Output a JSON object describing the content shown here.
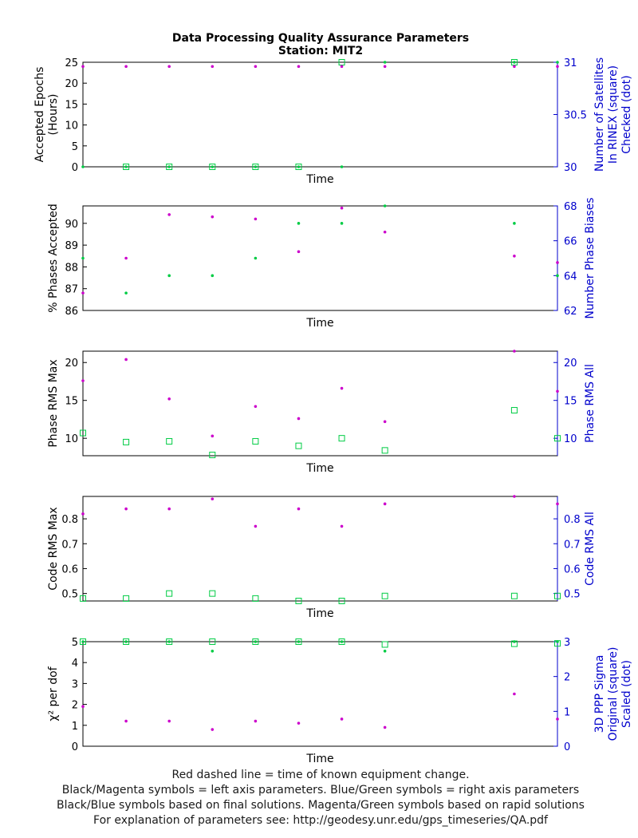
{
  "figure": {
    "title": "Data Processing Quality Assurance Parameters",
    "subtitle": "Station: MIT2",
    "footer": [
      "Red dashed line = time of known equipment change.",
      "Black/Magenta symbols = left axis parameters. Blue/Green symbols = right axis parameters",
      "Black/Blue symbols based on final solutions.  Magenta/Green symbols based on rapid solutions",
      "For explanation of parameters see: http://geodesy.unr.edu/gps_timeseries/QA.pdf"
    ],
    "colors": {
      "magenta": "#cc00cc",
      "green": "#00cc44",
      "right_axis": "#0000cc",
      "left_axis": "#000000"
    }
  },
  "chart_data": [
    {
      "type": "scatter",
      "xlabel": "Time",
      "ylabel_left": [
        "Accepted Epochs",
        "(Hours)"
      ],
      "ylabel_right": [
        "Number of Satellites",
        "In RINEX (square)",
        "Checked (dot)"
      ],
      "ylim_left": [
        0,
        25
      ],
      "ylim_right": [
        30,
        31
      ],
      "yticks_left": [
        "0",
        "5",
        "10",
        "15",
        "20",
        "25"
      ],
      "yticks_right": [
        "30",
        "30.5",
        "31"
      ],
      "x": [
        0,
        1,
        2,
        3,
        4,
        5,
        6,
        7,
        10,
        11
      ],
      "left_dot_magenta": [
        24,
        24,
        24,
        24,
        24,
        24,
        24,
        24,
        24,
        24
      ],
      "right_dot_green": [
        30,
        30,
        30,
        30,
        30,
        30,
        30,
        31,
        31,
        31
      ],
      "right_square_green": [
        null,
        30,
        30,
        30,
        30,
        30,
        31,
        null,
        31,
        null
      ]
    },
    {
      "type": "scatter",
      "xlabel": "Time",
      "ylabel_left": [
        "% Phases Accepted"
      ],
      "ylabel_right": [
        "Number Phase Biases"
      ],
      "ylim_left": [
        86,
        90.8
      ],
      "ylim_right": [
        62,
        68
      ],
      "yticks_left": [
        "86",
        "87",
        "88",
        "89",
        "90"
      ],
      "yticks_right": [
        "62",
        "64",
        "66",
        "68"
      ],
      "x": [
        0,
        1,
        2,
        3,
        4,
        5,
        6,
        7,
        10,
        11
      ],
      "left_dot_magenta": [
        86.8,
        88.4,
        90.4,
        90.3,
        90.2,
        88.7,
        90.7,
        89.6,
        88.5,
        88.2
      ],
      "right_dot_green": [
        65,
        63,
        64,
        64,
        65,
        67,
        67,
        68,
        67,
        64
      ]
    },
    {
      "type": "scatter",
      "xlabel": "Time",
      "ylabel_left": [
        "Phase RMS Max"
      ],
      "ylabel_right": [
        "Phase RMS All"
      ],
      "ylim_left": [
        7.7,
        21.5
      ],
      "ylim_right": [
        7.7,
        21.5
      ],
      "yticks_left": [
        "10",
        "15",
        "20"
      ],
      "yticks_right": [
        "10",
        "15",
        "20"
      ],
      "x": [
        0,
        1,
        2,
        3,
        4,
        5,
        6,
        7,
        10,
        11
      ],
      "left_dot_magenta": [
        17.6,
        20.4,
        15.2,
        10.3,
        14.2,
        12.6,
        16.6,
        12.2,
        21.5,
        16.2
      ],
      "right_square_green": [
        10.7,
        9.5,
        9.6,
        7.8,
        9.6,
        9.0,
        10.0,
        8.4,
        13.7,
        10.0
      ]
    },
    {
      "type": "scatter",
      "xlabel": "Time",
      "ylabel_left": [
        "Code RMS Max"
      ],
      "ylabel_right": [
        "Code RMS All"
      ],
      "ylim_left": [
        0.47,
        0.89
      ],
      "ylim_right": [
        0.47,
        0.89
      ],
      "yticks_left": [
        "0.5",
        "0.6",
        "0.7",
        "0.8"
      ],
      "yticks_right": [
        "0.5",
        "0.6",
        "0.7",
        "0.8"
      ],
      "x": [
        0,
        1,
        2,
        3,
        4,
        5,
        6,
        7,
        10,
        11
      ],
      "left_dot_magenta": [
        0.82,
        0.84,
        0.84,
        0.88,
        0.77,
        0.84,
        0.77,
        0.86,
        0.89,
        0.86
      ],
      "right_square_green": [
        0.48,
        0.48,
        0.5,
        0.5,
        0.48,
        0.47,
        0.47,
        0.49,
        0.49,
        0.49
      ]
    },
    {
      "type": "scatter",
      "xlabel": "Time",
      "ylabel_left": [
        "χ² per dof"
      ],
      "ylabel_right": [
        "3D PPP Sigma",
        "Original (square)",
        "Scaled (dot)"
      ],
      "ylim_left": [
        0,
        5
      ],
      "ylim_right": [
        0,
        3
      ],
      "yticks_left": [
        "0",
        "1",
        "2",
        "3",
        "4",
        "5"
      ],
      "yticks_right": [
        "0",
        "1",
        "2",
        "3"
      ],
      "x": [
        0,
        1,
        2,
        3,
        4,
        5,
        6,
        7,
        10,
        11
      ],
      "left_dot_magenta": [
        1.9,
        1.2,
        1.2,
        0.8,
        1.2,
        1.1,
        1.3,
        0.9,
        2.5,
        1.3
      ],
      "right_dot_green": [
        3.0,
        3.0,
        3.0,
        2.73,
        3.0,
        3.0,
        3.0,
        2.73,
        3.0,
        3.0
      ],
      "right_square_green": [
        3.0,
        3.0,
        3.0,
        3.0,
        3.0,
        3.0,
        3.0,
        2.92,
        2.94,
        2.95
      ]
    }
  ]
}
